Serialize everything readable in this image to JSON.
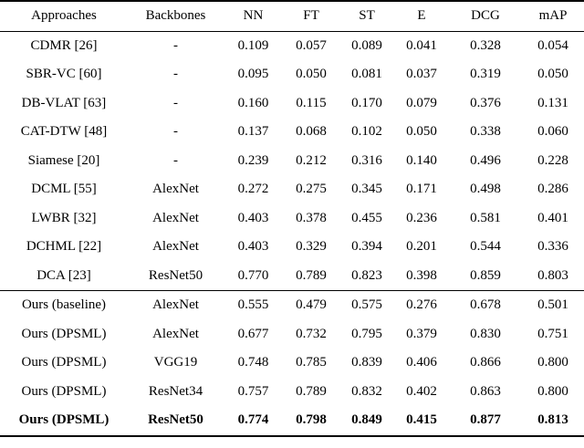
{
  "table": {
    "headers": [
      "Approaches",
      "Backbones",
      "NN",
      "FT",
      "ST",
      "E",
      "DCG",
      "mAP"
    ],
    "sections": [
      {
        "rows": [
          {
            "cells": [
              "CDMR [26]",
              "-",
              "0.109",
              "0.057",
              "0.089",
              "0.041",
              "0.328",
              "0.054"
            ],
            "bold": false
          },
          {
            "cells": [
              "SBR-VC [60]",
              "-",
              "0.095",
              "0.050",
              "0.081",
              "0.037",
              "0.319",
              "0.050"
            ],
            "bold": false
          },
          {
            "cells": [
              "DB-VLAT [63]",
              "-",
              "0.160",
              "0.115",
              "0.170",
              "0.079",
              "0.376",
              "0.131"
            ],
            "bold": false
          },
          {
            "cells": [
              "CAT-DTW [48]",
              "-",
              "0.137",
              "0.068",
              "0.102",
              "0.050",
              "0.338",
              "0.060"
            ],
            "bold": false
          },
          {
            "cells": [
              "Siamese [20]",
              "-",
              "0.239",
              "0.212",
              "0.316",
              "0.140",
              "0.496",
              "0.228"
            ],
            "bold": false
          },
          {
            "cells": [
              "DCML [55]",
              "AlexNet",
              "0.272",
              "0.275",
              "0.345",
              "0.171",
              "0.498",
              "0.286"
            ],
            "bold": false
          },
          {
            "cells": [
              "LWBR [32]",
              "AlexNet",
              "0.403",
              "0.378",
              "0.455",
              "0.236",
              "0.581",
              "0.401"
            ],
            "bold": false
          },
          {
            "cells": [
              "DCHML [22]",
              "AlexNet",
              "0.403",
              "0.329",
              "0.394",
              "0.201",
              "0.544",
              "0.336"
            ],
            "bold": false
          },
          {
            "cells": [
              "DCA [23]",
              "ResNet50",
              "0.770",
              "0.789",
              "0.823",
              "0.398",
              "0.859",
              "0.803"
            ],
            "bold": false
          }
        ]
      },
      {
        "rows": [
          {
            "cells": [
              "Ours (baseline)",
              "AlexNet",
              "0.555",
              "0.479",
              "0.575",
              "0.276",
              "0.678",
              "0.501"
            ],
            "bold": false
          },
          {
            "cells": [
              "Ours (DPSML)",
              "AlexNet",
              "0.677",
              "0.732",
              "0.795",
              "0.379",
              "0.830",
              "0.751"
            ],
            "bold": false
          },
          {
            "cells": [
              "Ours (DPSML)",
              "VGG19",
              "0.748",
              "0.785",
              "0.839",
              "0.406",
              "0.866",
              "0.800"
            ],
            "bold": false
          },
          {
            "cells": [
              "Ours (DPSML)",
              "ResNet34",
              "0.757",
              "0.789",
              "0.832",
              "0.402",
              "0.863",
              "0.800"
            ],
            "bold": false
          },
          {
            "cells": [
              "Ours (DPSML)",
              "ResNet50",
              "0.774",
              "0.798",
              "0.849",
              "0.415",
              "0.877",
              "0.813"
            ],
            "bold": true
          }
        ]
      }
    ]
  }
}
